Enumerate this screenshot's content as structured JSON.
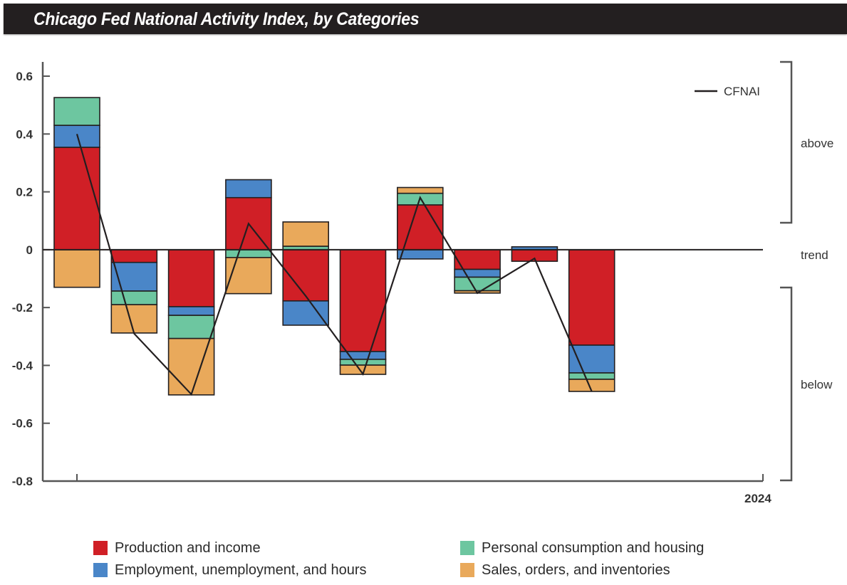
{
  "header": {
    "title": "Chicago Fed National Activity Index, by Categories"
  },
  "colors": {
    "production": "#d01f26",
    "employment": "#4a86c8",
    "consumption": "#6dc6a0",
    "sales": "#e9a95b",
    "line": "#231f20",
    "axis": "#555555"
  },
  "chart_data": {
    "type": "bar",
    "stacked": true,
    "title": "Chicago Fed National Activity Index, by Categories",
    "xlabel": "",
    "ylabel": "",
    "x_tick_labels": [
      "2024"
    ],
    "ylim": [
      -0.8,
      0.6
    ],
    "yticks": [
      0.6,
      0.4,
      0.2,
      0,
      -0.2,
      -0.4,
      -0.6,
      -0.8
    ],
    "ytick_labels": [
      "0.6",
      "0.4",
      "0.2",
      "0",
      "-0.2",
      "-0.4",
      "-0.6",
      "-0.8"
    ],
    "grid": false,
    "legend_placement": "bottom",
    "categories": [
      "1",
      "2",
      "3",
      "4",
      "5",
      "6",
      "7",
      "8",
      "9",
      "10"
    ],
    "series": [
      {
        "name": "Production and income",
        "key": "production",
        "values": [
          0.354,
          -0.044,
          -0.197,
          0.18,
          -0.177,
          -0.352,
          0.155,
          -0.068,
          -0.04,
          -0.33
        ]
      },
      {
        "name": "Employment, unemployment, and hours",
        "key": "employment",
        "values": [
          0.076,
          -0.099,
          -0.03,
          0.062,
          -0.084,
          -0.027,
          -0.032,
          -0.027,
          0.01,
          -0.096
        ]
      },
      {
        "name": "Personal consumption and housing",
        "key": "consumption",
        "values": [
          0.096,
          -0.047,
          -0.08,
          -0.027,
          0.012,
          -0.02,
          0.04,
          -0.047,
          0.0,
          -0.022
        ]
      },
      {
        "name": "Sales, orders, and inventories",
        "key": "sales",
        "values": [
          -0.13,
          -0.098,
          -0.195,
          -0.125,
          0.084,
          -0.032,
          0.02,
          -0.008,
          0.0,
          -0.042
        ]
      }
    ],
    "line_series": {
      "name": "CFNAI",
      "values": [
        0.4,
        -0.29,
        -0.5,
        0.09,
        -0.16,
        -0.43,
        0.18,
        -0.15,
        -0.03,
        -0.49
      ]
    },
    "side_annotations": [
      "above",
      "trend",
      "below"
    ]
  },
  "legend": {
    "items": [
      {
        "label": "Production and income",
        "key": "production"
      },
      {
        "label": "Employment, unemployment, and hours",
        "key": "employment"
      },
      {
        "label": "Personal consumption and housing",
        "key": "consumption"
      },
      {
        "label": "Sales, orders, and inventories",
        "key": "sales"
      }
    ],
    "line_label": "CFNAI"
  },
  "annotations": {
    "above": "above",
    "trend": "trend",
    "below": "below",
    "year": "2024"
  }
}
